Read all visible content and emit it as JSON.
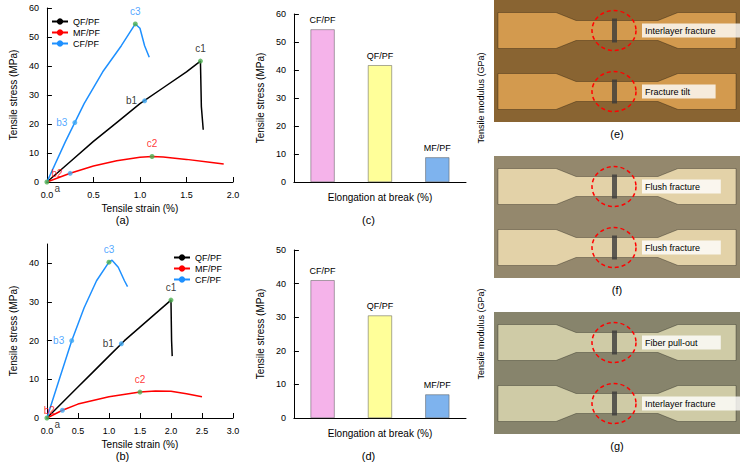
{
  "chart_data": [
    {
      "type": "line",
      "title": "(a)",
      "xlabel": "Tensile strain (%)",
      "ylabel": "Tensile stress (MPa)",
      "xlim": [
        0,
        2
      ],
      "xticks": [
        {
          "value": 0,
          "label": "0.0"
        },
        0.5,
        {
          "value": 1,
          "label": "1.0"
        },
        1.5,
        {
          "value": 2,
          "label": "2.0"
        }
      ],
      "ylim": [
        0,
        60
      ],
      "yticks": [
        0,
        10,
        20,
        30,
        40,
        50,
        60
      ],
      "grid": false,
      "legend": "upper left",
      "series": [
        {
          "name": "QF/PF",
          "color": "#000000",
          "x": [
            0,
            0.25,
            0.5,
            0.75,
            1.0,
            1.25,
            1.5,
            1.65,
            1.66,
            1.68
          ],
          "values": [
            0,
            7,
            14,
            20.5,
            27,
            32.5,
            38,
            41.7,
            26,
            18
          ]
        },
        {
          "name": "MF/PF",
          "color": "#ff0000",
          "x": [
            0,
            0.25,
            0.5,
            0.75,
            1.0,
            1.13,
            1.25,
            1.5,
            1.75,
            1.9
          ],
          "values": [
            0,
            3,
            5.5,
            7.3,
            8.5,
            8.8,
            8.6,
            7.8,
            6.8,
            6.2
          ]
        },
        {
          "name": "CF/PF",
          "color": "#1e90ff",
          "x": [
            0,
            0.2,
            0.4,
            0.6,
            0.8,
            0.95,
            1.0,
            1.05,
            1.1
          ],
          "values": [
            0,
            14,
            27,
            38,
            47,
            54.5,
            53,
            47,
            43
          ]
        }
      ],
      "annotations": [
        {
          "text": "a",
          "x": 0,
          "y": 0,
          "color": "#000000"
        },
        {
          "text": "b1",
          "x": 1.05,
          "y": 28,
          "color": "#000000"
        },
        {
          "text": "c1",
          "x": 1.65,
          "y": 41.7,
          "color": "#000000"
        },
        {
          "text": "b2",
          "x": 0.25,
          "y": 3,
          "color": "#ff0000"
        },
        {
          "text": "c2",
          "x": 1.13,
          "y": 8.8,
          "color": "#ff0000"
        },
        {
          "text": "b3",
          "x": 0.3,
          "y": 20.5,
          "color": "#1e90ff"
        },
        {
          "text": "c3",
          "x": 0.95,
          "y": 54.5,
          "color": "#1e90ff"
        }
      ]
    },
    {
      "type": "line",
      "title": "(b)",
      "xlabel": "Tensile strain (%)",
      "ylabel": "Tensile stress (MPa)",
      "xlim": [
        0,
        3
      ],
      "xticks": [
        {
          "value": 0,
          "label": "0.0"
        },
        0.5,
        {
          "value": 1,
          "label": "1.0"
        },
        1.5,
        {
          "value": 2,
          "label": "2.0"
        },
        2.5,
        {
          "value": 3,
          "label": "3.0"
        }
      ],
      "ylim": [
        0,
        45
      ],
      "yticks": [
        0,
        10,
        20,
        30,
        40
      ],
      "grid": false,
      "legend": "upper right",
      "series": [
        {
          "name": "QF/PF",
          "color": "#000000",
          "x": [
            0,
            0.25,
            0.5,
            0.75,
            1.0,
            1.25,
            1.5,
            1.75,
            2.0,
            2.01,
            2.02
          ],
          "values": [
            0,
            4,
            8,
            12,
            16,
            20,
            23.5,
            27,
            30.5,
            20,
            16
          ]
        },
        {
          "name": "MF/PF",
          "color": "#ff0000",
          "x": [
            0,
            0.25,
            0.5,
            1.0,
            1.5,
            1.75,
            2.0,
            2.25,
            2.5
          ],
          "values": [
            0,
            2,
            3.6,
            5.5,
            6.7,
            7,
            6.9,
            6.3,
            5.5
          ]
        },
        {
          "name": "CF/PF",
          "color": "#1e90ff",
          "x": [
            0,
            0.2,
            0.4,
            0.6,
            0.8,
            1.0,
            1.05,
            1.15,
            1.25,
            1.3
          ],
          "values": [
            0,
            10,
            20,
            28.5,
            35.5,
            40.3,
            40.8,
            39,
            35.5,
            34
          ]
        }
      ],
      "annotations": [
        {
          "text": "a",
          "x": 0,
          "y": 0,
          "color": "#000000"
        },
        {
          "text": "b1",
          "x": 1.2,
          "y": 19.2,
          "color": "#000000"
        },
        {
          "text": "c1",
          "x": 2.0,
          "y": 30.5,
          "color": "#000000"
        },
        {
          "text": "b2",
          "x": 0.25,
          "y": 2,
          "color": "#ff0000"
        },
        {
          "text": "c2",
          "x": 1.5,
          "y": 6.7,
          "color": "#ff0000"
        },
        {
          "text": "b3",
          "x": 0.4,
          "y": 20,
          "color": "#1e90ff"
        },
        {
          "text": "c3",
          "x": 1.0,
          "y": 40.3,
          "color": "#1e90ff"
        }
      ]
    },
    {
      "type": "bar",
      "title": "(c)",
      "ylabel": "Tensile stress (MPa)",
      "xlabel": "Elongation at break (%)",
      "zlabel": "Tensile modulus (GPa)",
      "categories": [
        "CF/PF",
        "QF/PF",
        "MF/PF"
      ],
      "values": [
        54.5,
        41.7,
        8.8
      ],
      "colors": [
        "#f5b3ea",
        "#ffff99",
        "#7eb3ee"
      ],
      "ylim": [
        0,
        60
      ],
      "yticks": [
        0,
        10,
        20,
        30,
        40,
        50,
        60
      ],
      "grid": false,
      "tick_labels": "y"
    },
    {
      "type": "bar",
      "title": "(d)",
      "ylabel": "Tensile stress (MPa)",
      "xlabel": "Elongation at break (%)",
      "zlabel": "Tensile modulus (GPa)",
      "categories": [
        "CF/PF",
        "QF/PF",
        "MF/PF"
      ],
      "values": [
        41,
        30.5,
        7
      ],
      "colors": [
        "#f5b3ea",
        "#ffff99",
        "#7eb3ee"
      ],
      "ylim": [
        0,
        50
      ],
      "yticks": [
        0,
        10,
        20,
        30,
        40,
        50
      ],
      "grid": false,
      "tick_labels": "y"
    }
  ],
  "photos": [
    {
      "panel": "(e)",
      "color": "#d39a4e",
      "labels": [
        "Interlayer fracture",
        "Fracture tilt"
      ]
    },
    {
      "panel": "(f)",
      "color": "#e3d2a8",
      "labels": [
        "Flush fracture",
        "Flush fracture"
      ]
    },
    {
      "panel": "(g)",
      "color": "#cfcba6",
      "labels": [
        "Fiber pull-out",
        "Interlayer fracture"
      ]
    }
  ]
}
